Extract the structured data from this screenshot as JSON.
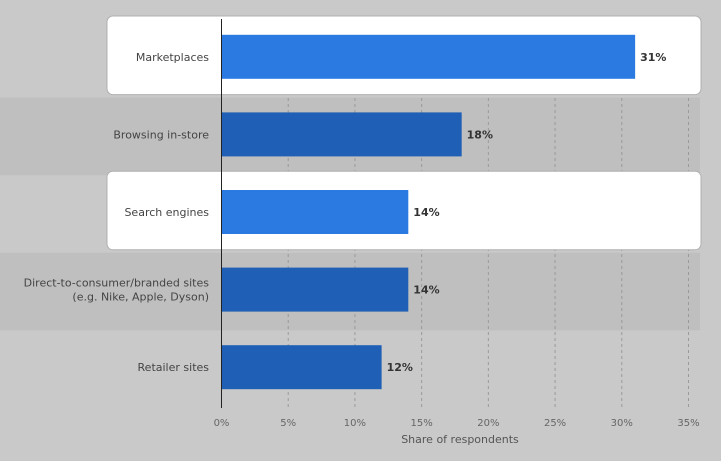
{
  "chart_data": {
    "type": "bar",
    "orientation": "horizontal",
    "categories": [
      [
        "Marketplaces"
      ],
      [
        "Browsing in-store"
      ],
      [
        "Search engines"
      ],
      [
        "Direct-to-consumer/branded sites",
        "(e.g. Nike, Apple, Dyson)"
      ],
      [
        "Retailer sites"
      ]
    ],
    "values": [
      31,
      18,
      14,
      14,
      12
    ],
    "value_labels": [
      "31%",
      "18%",
      "14%",
      "14%",
      "12%"
    ],
    "highlighted": [
      true,
      false,
      true,
      false,
      false
    ],
    "xlabel": "Share of respondents",
    "xlim": [
      0,
      35
    ],
    "xticks": [
      0,
      5,
      10,
      15,
      20,
      25,
      30,
      35
    ],
    "xtick_labels": [
      "0%",
      "5%",
      "10%",
      "15%",
      "20%",
      "25%",
      "30%",
      "35%"
    ],
    "grid": "vertical dashed",
    "colors": {
      "bar": "#1f5fb5",
      "bar_highlight": "#2a7ae2",
      "background": "#c9c9c9",
      "alt_band": "#bfbfbf",
      "highlight_box": "#ffffff",
      "grid": "#9a9a9a"
    }
  }
}
